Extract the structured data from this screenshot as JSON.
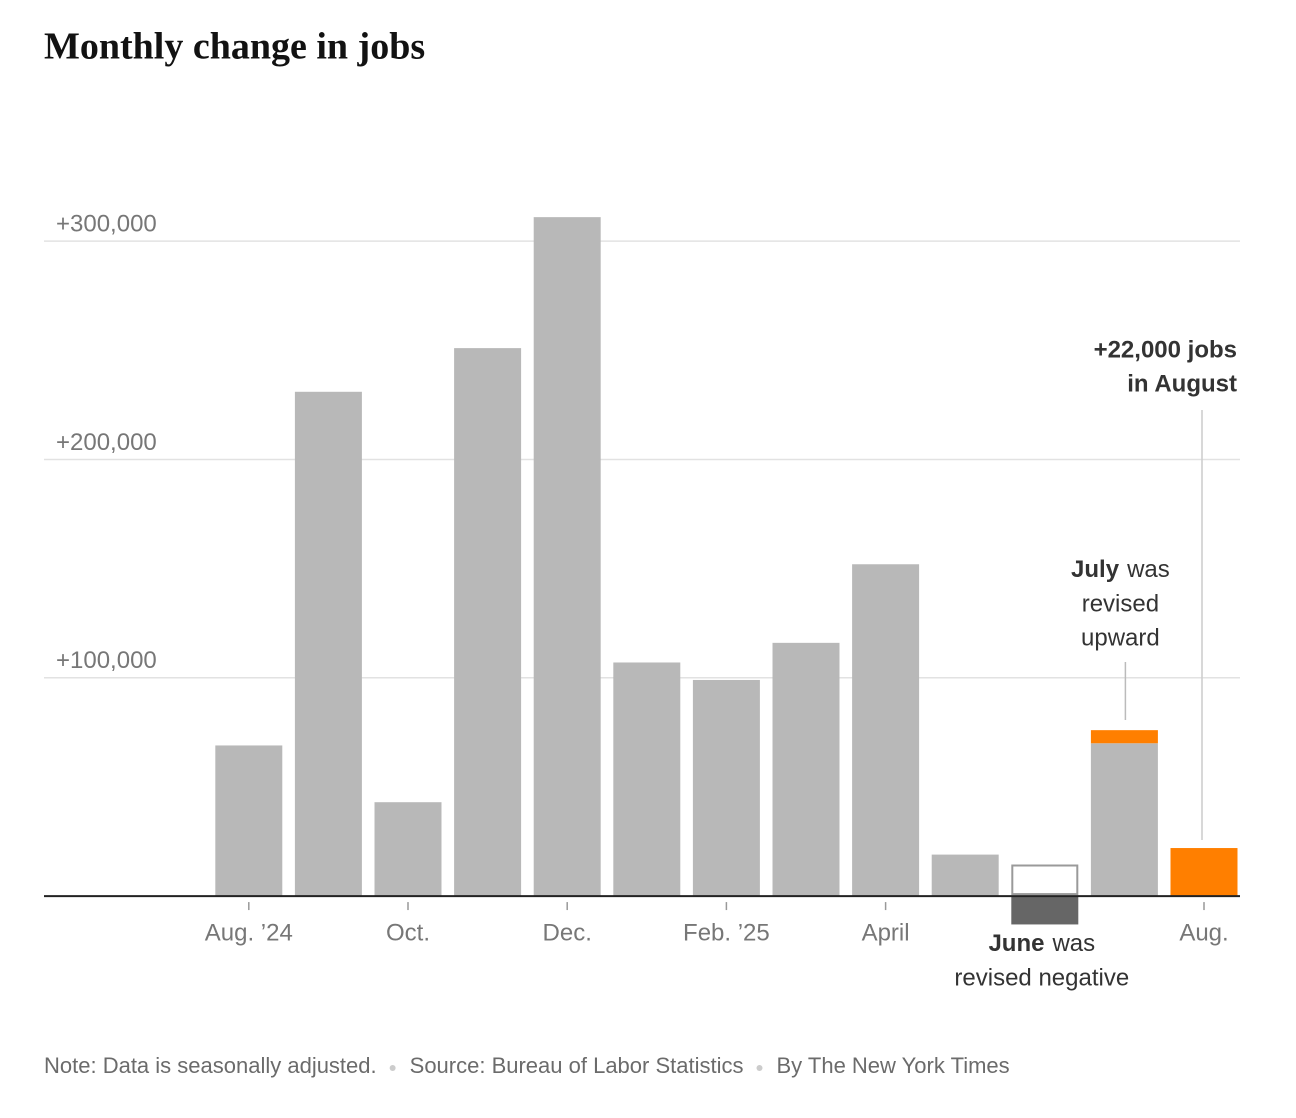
{
  "chart_data": {
    "type": "bar",
    "title": "Monthly change in jobs",
    "categories": [
      "Aug. ’24",
      null,
      "Oct.",
      null,
      "Dec.",
      null,
      "Feb. ’25",
      null,
      "April",
      null,
      null,
      null,
      "Aug."
    ],
    "series": [
      {
        "color": "#b8b8b8",
        "values": [
          69000,
          231000,
          43000,
          251000,
          311000,
          107000,
          99000,
          116000,
          152000,
          19000,
          null,
          70000,
          null
        ]
      },
      {
        "color": "#9a9a9a",
        "outline": true,
        "values": [
          null,
          null,
          null,
          null,
          null,
          null,
          null,
          null,
          null,
          null,
          14000,
          null,
          null
        ]
      },
      {
        "color": "#666666",
        "values": [
          null,
          null,
          null,
          null,
          null,
          null,
          null,
          null,
          null,
          null,
          -13000,
          null,
          null
        ]
      },
      {
        "color": "#ff7f00",
        "stacked": true,
        "values": [
          null,
          null,
          null,
          null,
          null,
          null,
          null,
          null,
          null,
          null,
          null,
          6000,
          22000
        ]
      }
    ],
    "ylim": [
      -16000,
      350000
    ],
    "yticks": [
      {
        "value": 100000,
        "label": "+100,000"
      },
      {
        "value": 200000,
        "label": "+200,000"
      },
      {
        "value": 300000,
        "label": "+300,000"
      }
    ],
    "grid": true,
    "annotations": [
      {
        "bold": "July",
        "rest": "was",
        "lines": [
          "revised",
          "upward"
        ]
      },
      {
        "bold": "June",
        "rest": "was",
        "lines": [
          "revised negative"
        ]
      },
      {
        "bold_lines": [
          "+22,000 jobs",
          "in August"
        ]
      }
    ],
    "footer": [
      "Note: Data is seasonally adjusted.",
      "Source: Bureau of Labor Statistics",
      "By The New York Times"
    ]
  }
}
